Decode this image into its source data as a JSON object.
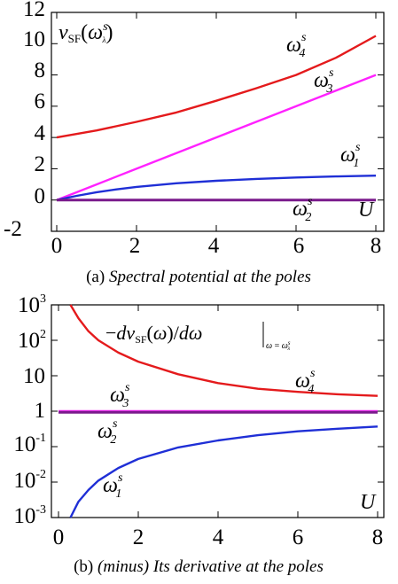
{
  "chart_data": [
    {
      "type": "line",
      "caption_prefix": "(a)",
      "caption_text": "Spectral potential at the poles",
      "ylabel": "v_SF(ω_λ^s)",
      "xlabel": "U",
      "xlim": [
        0,
        8.2
      ],
      "ylim": [
        -2,
        12
      ],
      "yscale": "linear",
      "x_ticks": [
        "0",
        "2",
        "4",
        "6",
        "8"
      ],
      "y_ticks": [
        "-2",
        "0",
        "2",
        "4",
        "6",
        "8",
        "10",
        "12"
      ],
      "series": [
        {
          "name": "ω4s",
          "color": "#e41a1c",
          "x": [
            0,
            1,
            2,
            3,
            4,
            5,
            6,
            7,
            8
          ],
          "y": [
            4.0,
            4.45,
            5.0,
            5.6,
            6.35,
            7.15,
            8.0,
            9.1,
            10.5
          ]
        },
        {
          "name": "ω3s",
          "color": "#ff22ff",
          "x": [
            0,
            1,
            2,
            3,
            4,
            5,
            6,
            7,
            8
          ],
          "y": [
            0,
            1.0,
            2.0,
            3.0,
            4.0,
            5.0,
            6.0,
            7.0,
            8.0
          ]
        },
        {
          "name": "ω1s",
          "color": "#1f2fd6",
          "x": [
            0,
            0.5,
            1,
            1.5,
            2,
            3,
            4,
            5,
            6,
            7,
            8
          ],
          "y": [
            0,
            0.27,
            0.5,
            0.68,
            0.84,
            1.07,
            1.23,
            1.35,
            1.44,
            1.51,
            1.56
          ]
        },
        {
          "name": "ω2s",
          "color": "#7a1a8c",
          "x": [
            0,
            8
          ],
          "y": [
            0,
            0
          ]
        }
      ]
    },
    {
      "type": "line",
      "caption_prefix": "(b)",
      "caption_text": "(minus) Its derivative at the poles",
      "ylabel": "−dv_SF(ω)/dω|_{ω = ω_λ^s}",
      "xlabel": "U",
      "xlim": [
        0,
        8.2
      ],
      "ylim": [
        0.001,
        1000
      ],
      "yscale": "log",
      "x_ticks": [
        "0",
        "2",
        "4",
        "6",
        "8"
      ],
      "y_ticks": [
        "10^-3",
        "10^-2",
        "10^-1",
        "1",
        "10",
        "10^2",
        "10^3"
      ],
      "series": [
        {
          "name": "ω4s",
          "color": "#e41a1c",
          "x": [
            0.3,
            0.5,
            0.75,
            1,
            1.5,
            2,
            3,
            4,
            5,
            6,
            7,
            8
          ],
          "y": [
            1000,
            420,
            180,
            100,
            45,
            25,
            11,
            6.2,
            4.3,
            3.5,
            3.0,
            2.7
          ]
        },
        {
          "name": "ω3s",
          "color": "#ff22ff",
          "x": [
            0,
            8
          ],
          "y": [
            1,
            1
          ]
        },
        {
          "name": "ω2s",
          "color": "#7a1a8c",
          "x": [
            0,
            8
          ],
          "y": [
            0.93,
            0.93
          ]
        },
        {
          "name": "ω1s",
          "color": "#1f2fd6",
          "x": [
            0.3,
            0.5,
            0.75,
            1,
            1.5,
            2,
            3,
            4,
            5,
            6,
            7,
            8
          ],
          "y": [
            0.001,
            0.0028,
            0.006,
            0.011,
            0.025,
            0.045,
            0.095,
            0.15,
            0.21,
            0.27,
            0.32,
            0.37
          ]
        }
      ]
    }
  ]
}
